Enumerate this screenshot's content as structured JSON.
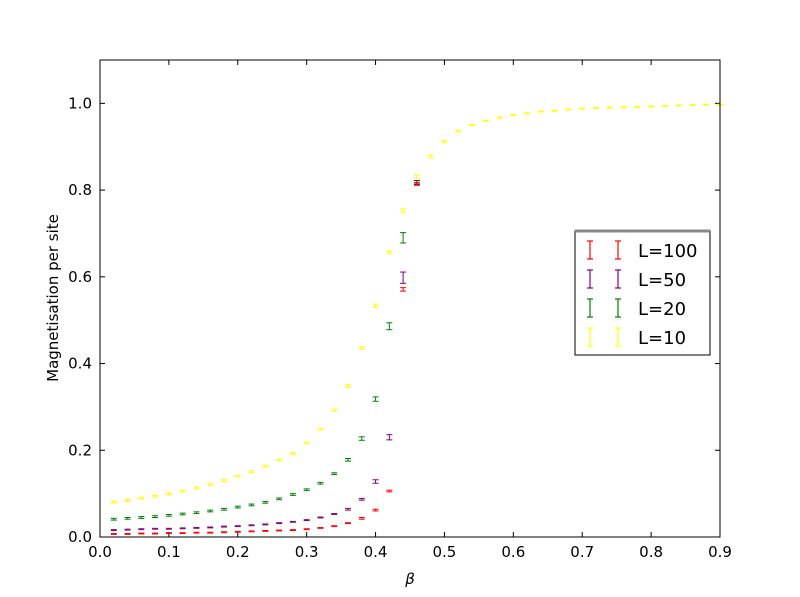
{
  "chart_data": {
    "type": "scatter",
    "xlabel": "β",
    "ylabel": "Magnetisation per site",
    "xlim": [
      0.0,
      0.9
    ],
    "ylim": [
      0.0,
      1.1
    ],
    "xticks": [
      "0.0",
      "0.1",
      "0.2",
      "0.3",
      "0.4",
      "0.5",
      "0.6",
      "0.7",
      "0.8",
      "0.9"
    ],
    "yticks": [
      "0.0",
      "0.2",
      "0.4",
      "0.6",
      "0.8",
      "1.0"
    ],
    "grid": false,
    "legend_position": "right",
    "series": [
      {
        "name": "L=10",
        "color": "#ffff00",
        "x": [
          0.02,
          0.04,
          0.06,
          0.08,
          0.1,
          0.12,
          0.14,
          0.16,
          0.18,
          0.2,
          0.22,
          0.24,
          0.26,
          0.28,
          0.3,
          0.32,
          0.34,
          0.36,
          0.38,
          0.4,
          0.42,
          0.44,
          0.46,
          0.48,
          0.5,
          0.52,
          0.54,
          0.56,
          0.58,
          0.6,
          0.62,
          0.64,
          0.66,
          0.68,
          0.7,
          0.72,
          0.74,
          0.76,
          0.78,
          0.8,
          0.82,
          0.84,
          0.86,
          0.88,
          0.9
        ],
        "y": [
          0.08,
          0.084,
          0.089,
          0.094,
          0.1,
          0.106,
          0.113,
          0.121,
          0.13,
          0.14,
          0.151,
          0.163,
          0.177,
          0.193,
          0.217,
          0.249,
          0.292,
          0.348,
          0.436,
          0.533,
          0.656,
          0.753,
          0.83,
          0.877,
          0.912,
          0.936,
          0.95,
          0.96,
          0.967,
          0.973,
          0.977,
          0.981,
          0.983,
          0.986,
          0.988,
          0.989,
          0.99,
          0.991,
          0.992,
          0.993,
          0.994,
          0.995,
          0.996,
          0.997,
          0.997
        ],
        "err": [
          0.002,
          0.002,
          0.002,
          0.002,
          0.002,
          0.002,
          0.002,
          0.002,
          0.002,
          0.002,
          0.002,
          0.002,
          0.002,
          0.002,
          0.002,
          0.002,
          0.003,
          0.003,
          0.003,
          0.004,
          0.003,
          0.004,
          0.004,
          0.003,
          0.002,
          0.002,
          0.001,
          0.001,
          0.001,
          0.001,
          0.001,
          0.001,
          0.001,
          0.001,
          0.001,
          0.001,
          0.001,
          0.001,
          0.001,
          0.001,
          0.001,
          0.001,
          0.001,
          0.001,
          0.001
        ]
      },
      {
        "name": "L=20",
        "color": "#008000",
        "x": [
          0.02,
          0.04,
          0.06,
          0.08,
          0.1,
          0.12,
          0.14,
          0.16,
          0.18,
          0.2,
          0.22,
          0.24,
          0.26,
          0.28,
          0.3,
          0.32,
          0.34,
          0.36,
          0.38,
          0.4,
          0.42,
          0.44,
          0.46
        ],
        "y": [
          0.041,
          0.043,
          0.045,
          0.047,
          0.05,
          0.053,
          0.056,
          0.06,
          0.064,
          0.069,
          0.074,
          0.08,
          0.088,
          0.098,
          0.109,
          0.124,
          0.146,
          0.178,
          0.227,
          0.318,
          0.486,
          0.69,
          0.818
        ],
        "err": [
          0.002,
          0.002,
          0.002,
          0.002,
          0.002,
          0.002,
          0.002,
          0.002,
          0.002,
          0.002,
          0.002,
          0.002,
          0.002,
          0.002,
          0.002,
          0.002,
          0.002,
          0.003,
          0.004,
          0.005,
          0.008,
          0.012,
          0.004
        ]
      },
      {
        "name": "L=50",
        "color": "#800080",
        "x": [
          0.02,
          0.04,
          0.06,
          0.08,
          0.1,
          0.12,
          0.14,
          0.16,
          0.18,
          0.2,
          0.22,
          0.24,
          0.26,
          0.28,
          0.3,
          0.32,
          0.34,
          0.36,
          0.38,
          0.4,
          0.42,
          0.44,
          0.46
        ],
        "y": [
          0.016,
          0.017,
          0.018,
          0.019,
          0.019,
          0.02,
          0.021,
          0.022,
          0.024,
          0.025,
          0.027,
          0.029,
          0.032,
          0.035,
          0.039,
          0.045,
          0.053,
          0.064,
          0.087,
          0.128,
          0.23,
          0.598,
          0.817
        ],
        "err": [
          0.001,
          0.001,
          0.001,
          0.001,
          0.001,
          0.001,
          0.001,
          0.001,
          0.001,
          0.001,
          0.001,
          0.001,
          0.001,
          0.001,
          0.001,
          0.001,
          0.001,
          0.002,
          0.002,
          0.004,
          0.006,
          0.013,
          0.005
        ]
      },
      {
        "name": "L=100",
        "color": "#ff0000",
        "x": [
          0.02,
          0.04,
          0.06,
          0.08,
          0.1,
          0.12,
          0.14,
          0.16,
          0.18,
          0.2,
          0.22,
          0.24,
          0.26,
          0.28,
          0.3,
          0.32,
          0.34,
          0.36,
          0.38,
          0.4,
          0.42,
          0.44,
          0.46
        ],
        "y": [
          0.007,
          0.007,
          0.008,
          0.008,
          0.009,
          0.009,
          0.01,
          0.01,
          0.011,
          0.012,
          0.013,
          0.014,
          0.015,
          0.016,
          0.018,
          0.021,
          0.025,
          0.032,
          0.043,
          0.062,
          0.106,
          0.571,
          0.814
        ],
        "err": [
          0.001,
          0.001,
          0.001,
          0.001,
          0.001,
          0.001,
          0.001,
          0.001,
          0.001,
          0.001,
          0.001,
          0.001,
          0.001,
          0.001,
          0.001,
          0.001,
          0.001,
          0.001,
          0.002,
          0.002,
          0.002,
          0.004,
          0.003
        ]
      }
    ],
    "legend_order": [
      "L=100",
      "L=50",
      "L=20",
      "L=10"
    ]
  }
}
